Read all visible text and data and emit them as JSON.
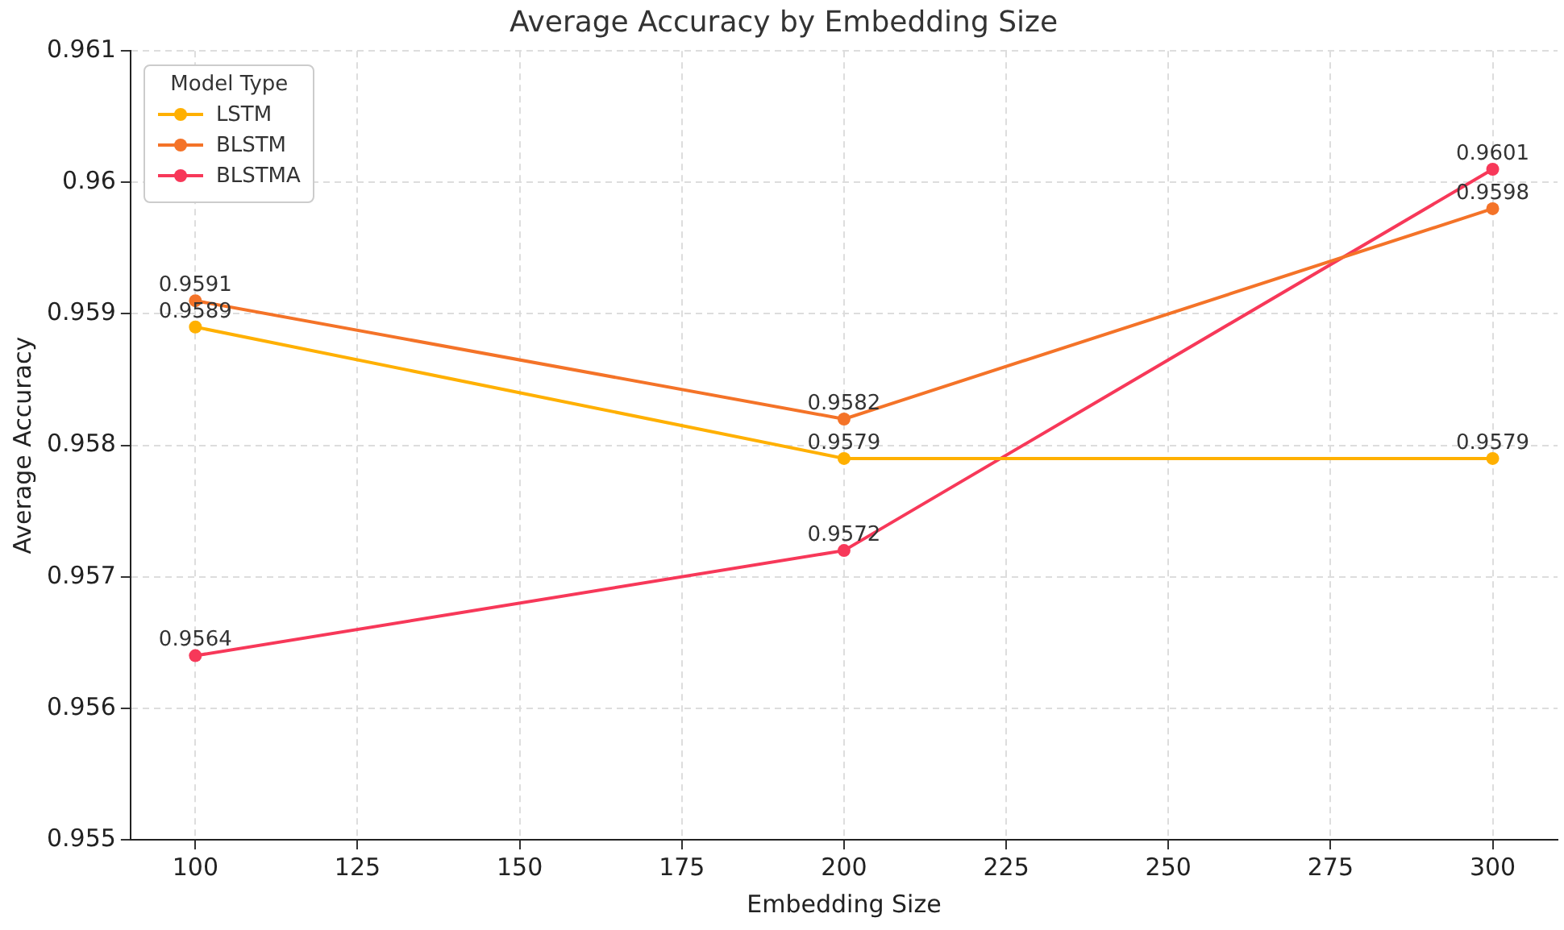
{
  "chart_data": {
    "type": "line",
    "title": "Average Accuracy by Embedding Size",
    "xlabel": "Embedding Size",
    "ylabel": "Average Accuracy",
    "legend_title": "Model Type",
    "x": [
      100,
      200,
      300
    ],
    "series": [
      {
        "name": "LSTM",
        "color": "#ffb000",
        "values": [
          0.9589,
          0.9579,
          0.9579
        ]
      },
      {
        "name": "BLSTM",
        "color": "#f47328",
        "values": [
          0.9591,
          0.9582,
          0.9598
        ]
      },
      {
        "name": "BLSTMA",
        "color": "#f73859",
        "values": [
          0.9564,
          0.9572,
          0.9601
        ]
      }
    ],
    "xlim": [
      90,
      310
    ],
    "xticks": [
      100,
      125,
      150,
      175,
      200,
      225,
      250,
      275,
      300
    ],
    "ylim": [
      0.955,
      0.961
    ],
    "yticks": [
      0.955,
      0.956,
      0.957,
      0.958,
      0.959,
      0.96,
      0.961
    ],
    "grid": true,
    "legend": "top left",
    "marker": "circle",
    "line_style": "solid",
    "data_labels": true
  }
}
